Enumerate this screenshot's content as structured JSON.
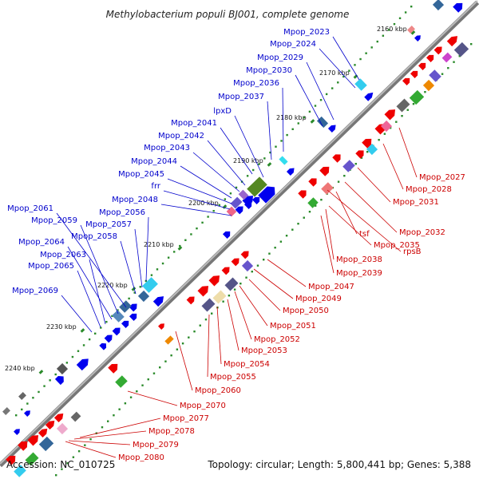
{
  "title": "Methylobacterium populi BJ001, complete genome",
  "accession": "Accession: NC_010725",
  "summary": "Topology: circular; Length: 5,800,441 bp; Genes: 5,388",
  "colors": {
    "forward_label": "#0000cc",
    "reverse_label": "#cc0000",
    "backbone": "#888888",
    "tick": "#228822"
  },
  "ticks": [
    "2160 kbp",
    "2170 kbp",
    "2180 kbp",
    "2190 kbp",
    "2200 kbp",
    "2210 kbp",
    "2220 kbp",
    "2230 kbp",
    "2240 kbp"
  ],
  "forward_labels": [
    "Mpop_2023",
    "Mpop_2024",
    "Mpop_2029",
    "Mpop_2030",
    "Mpop_2036",
    "Mpop_2037",
    "lpxD",
    "Mpop_2041",
    "Mpop_2042",
    "Mpop_2043",
    "Mpop_2044",
    "Mpop_2045",
    "frr",
    "Mpop_2048",
    "Mpop_2056",
    "Mpop_2057",
    "Mpop_2058",
    "Mpop_2061",
    "Mpop_2059",
    "Mpop_2064",
    "Mpop_2063",
    "Mpop_2065",
    "Mpop_2069"
  ],
  "reverse_labels": [
    "Mpop_2027",
    "Mpop_2028",
    "Mpop_2031",
    "Mpop_2032",
    "tsf",
    "rpsB",
    "Mpop_2035",
    "Mpop_2038",
    "Mpop_2039",
    "Mpop_2047",
    "Mpop_2049",
    "Mpop_2050",
    "Mpop_2051",
    "Mpop_2052",
    "Mpop_2053",
    "Mpop_2054",
    "Mpop_2055",
    "Mpop_2060",
    "Mpop_2070",
    "Mpop_2077",
    "Mpop_2078",
    "Mpop_2079",
    "Mpop_2080"
  ]
}
